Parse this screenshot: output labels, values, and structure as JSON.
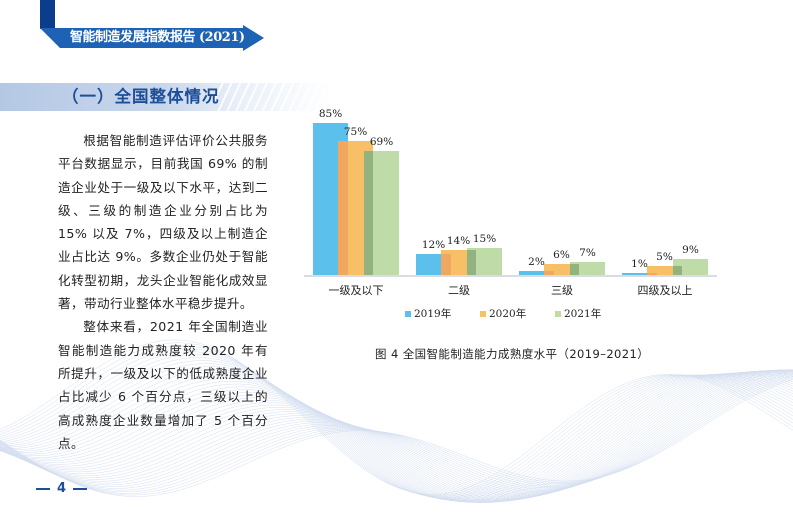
{
  "header": {
    "report_title": "智能制造发展指数报告 (2021)",
    "colors": {
      "dark_blue": "#0c3c8c",
      "banner_blue": "#1d62b5"
    }
  },
  "section": {
    "title": "（一）全国整体情况"
  },
  "body": {
    "paragraphs": [
      "根据智能制造评估评价公共服务平台数据显示，目前我国 69% 的制造企业处于一级及以下水平，达到二级、三级的制造企业分别占比为 15% 以及 7%，四级及以上制造企业占比达 9%。多数企业仍处于智能化转型初期，龙头企业智能化成效显著，带动行业整体水平稳步提升。",
      "整体来看，2021 年全国制造业智能制造能力成熟度较 2020 年有所提升，一级及以下的低成熟度企业占比减少 6 个百分点，三级以上的高成熟度企业数量增加了 5 个百分点。"
    ]
  },
  "figure": {
    "caption": "图 4  全国智能制造能力成熟度水平（2019–2021）"
  },
  "page": {
    "number": "4"
  },
  "chart_data": {
    "type": "bar",
    "title": "全国智能制造能力成熟度水平（2019–2021）",
    "categories": [
      "一级及以下",
      "二级",
      "三级",
      "四级及以上"
    ],
    "series": [
      {
        "name": "2019年",
        "values": [
          85,
          12,
          2,
          1
        ],
        "labels": [
          "85%",
          "12%",
          "2%",
          "1%"
        ],
        "color": "#5bc0eb"
      },
      {
        "name": "2020年",
        "values": [
          75,
          14,
          6,
          5
        ],
        "labels": [
          "75%",
          "14%",
          "6%",
          "5%"
        ],
        "color": "#f7c067"
      },
      {
        "name": "2021年",
        "values": [
          69,
          15,
          7,
          9
        ],
        "labels": [
          "69%",
          "15%",
          "7%",
          "9%"
        ],
        "color": "#bfdca8"
      }
    ],
    "xlabel": "",
    "ylabel": "",
    "ylim": [
      0,
      100
    ],
    "grid": false,
    "legend_position": "bottom",
    "overlap_colors": {
      "2019_2020": "#f0a860",
      "2020_2021": "#92b27f"
    }
  }
}
